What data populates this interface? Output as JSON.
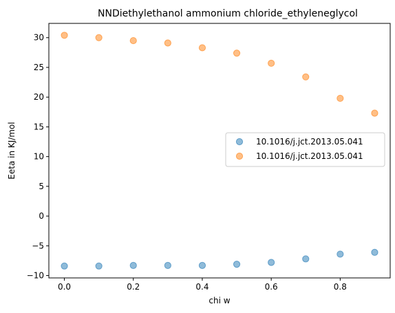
{
  "chart_data": {
    "type": "scatter",
    "title": "NNDiethylethanol ammonium chloride_ethyleneglycol",
    "xlabel": "chi w",
    "ylabel": "Eeta in KJ/mol",
    "xlim": [
      -0.045,
      0.945
    ],
    "ylim": [
      -10.4,
      32.4
    ],
    "xticks": [
      0.0,
      0.2,
      0.4,
      0.6,
      0.8
    ],
    "xtick_labels": [
      "0.0",
      "0.2",
      "0.4",
      "0.6",
      "0.8"
    ],
    "yticks": [
      -10,
      -5,
      0,
      5,
      10,
      15,
      20,
      25,
      30
    ],
    "ytick_labels": [
      "−10",
      "−5",
      "0",
      "5",
      "10",
      "15",
      "20",
      "25",
      "30"
    ],
    "grid": false,
    "legend_position": "center-right",
    "series": [
      {
        "name": "10.1016/j.jct.2013.05.041",
        "color": "#1f77b4",
        "x": [
          0.0,
          0.1,
          0.2,
          0.3,
          0.4,
          0.5,
          0.6,
          0.7,
          0.8,
          0.9
        ],
        "y": [
          -8.4,
          -8.4,
          -8.3,
          -8.3,
          -8.3,
          -8.1,
          -7.8,
          -7.2,
          -6.4,
          -6.1
        ]
      },
      {
        "name": "10.1016/j.jct.2013.05.041",
        "color": "#ff7f0e",
        "x": [
          0.0,
          0.1,
          0.2,
          0.3,
          0.4,
          0.5,
          0.6,
          0.7,
          0.8,
          0.9
        ],
        "y": [
          30.4,
          30.0,
          29.5,
          29.1,
          28.3,
          27.4,
          25.7,
          23.4,
          19.8,
          17.3
        ]
      }
    ]
  }
}
